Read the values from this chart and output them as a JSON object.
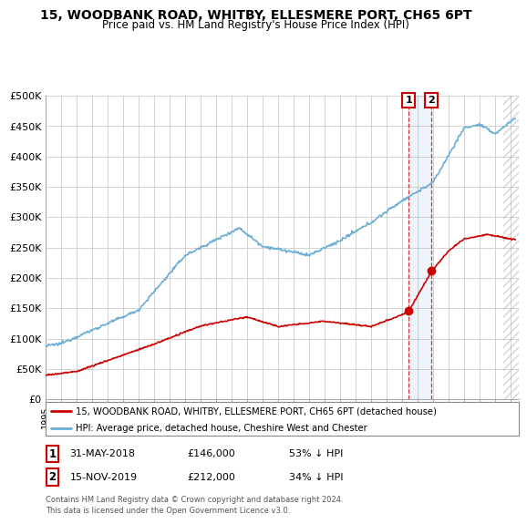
{
  "title": "15, WOODBANK ROAD, WHITBY, ELLESMERE PORT, CH65 6PT",
  "subtitle": "Price paid vs. HM Land Registry's House Price Index (HPI)",
  "hpi_color": "#6baed6",
  "price_color": "#cc0000",
  "background_color": "#ffffff",
  "grid_color": "#cccccc",
  "ylim": [
    0,
    500000
  ],
  "yticks": [
    0,
    50000,
    100000,
    150000,
    200000,
    250000,
    300000,
    350000,
    400000,
    450000,
    500000
  ],
  "sale1_date": "31-MAY-2018",
  "sale1_price": 146000,
  "sale1_x": 2018.416,
  "sale2_date": "15-NOV-2019",
  "sale2_price": 212000,
  "sale2_x": 2019.875,
  "legend_line1": "15, WOODBANK ROAD, WHITBY, ELLESMERE PORT, CH65 6PT (detached house)",
  "legend_line2": "HPI: Average price, detached house, Cheshire West and Chester",
  "table_row1": [
    "1",
    "31-MAY-2018",
    "£146,000",
    "53% ↓ HPI"
  ],
  "table_row2": [
    "2",
    "15-NOV-2019",
    "£212,000",
    "34% ↓ HPI"
  ],
  "footer": "Contains HM Land Registry data © Crown copyright and database right 2024.\nThis data is licensed under the Open Government Licence v3.0.",
  "xmin": 1995,
  "xmax": 2025.5
}
